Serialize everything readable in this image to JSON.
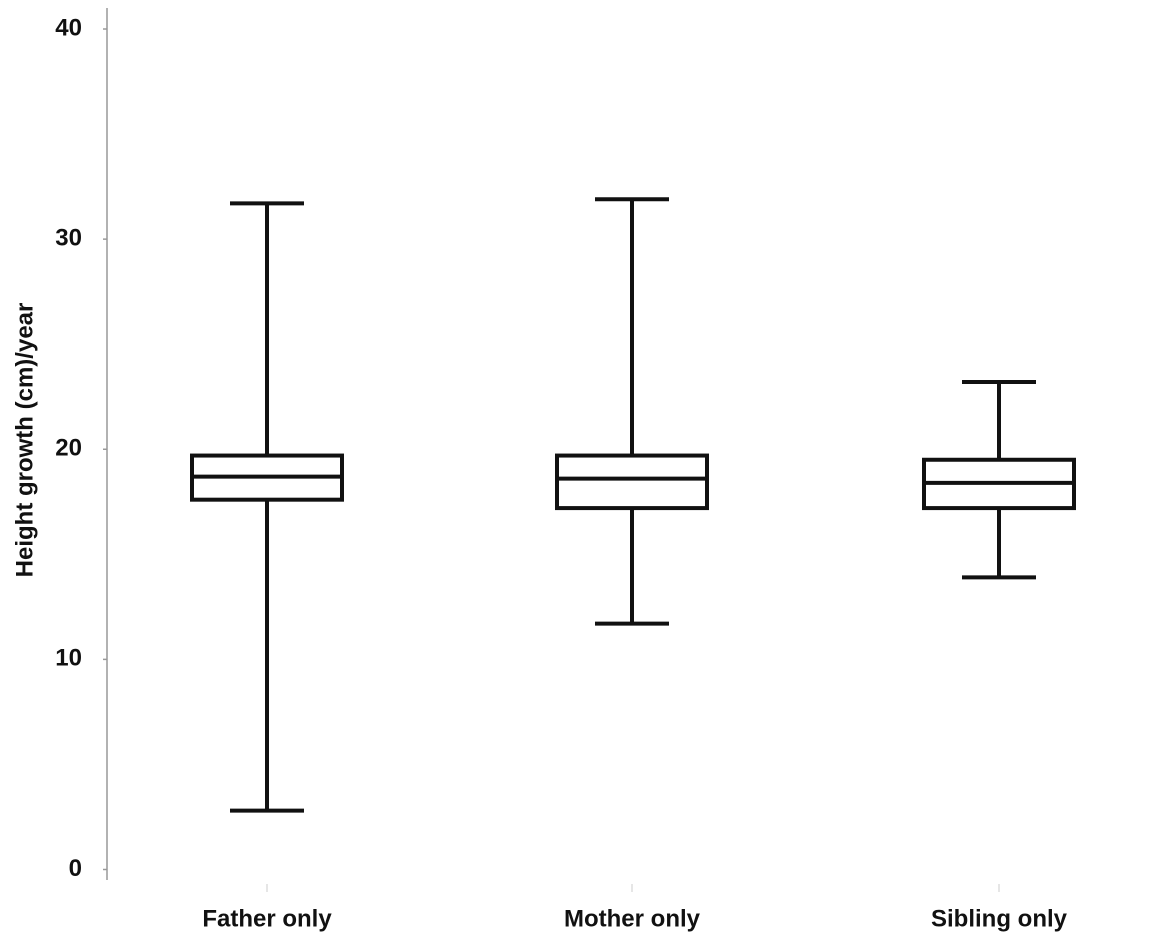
{
  "chart_data": {
    "type": "box",
    "y_label": "Height growth (cm)/year",
    "categories": [
      "Father only",
      "Mother only",
      "Sibling only"
    ],
    "min": [
      2.8,
      11.7,
      13.9
    ],
    "q1": [
      17.6,
      17.2,
      17.2
    ],
    "median": [
      18.7,
      18.6,
      18.4
    ],
    "q3": [
      19.7,
      19.7,
      19.5
    ],
    "max": [
      31.7,
      31.9,
      23.2
    ],
    "color": "#111111",
    "ylim": [
      -0.5,
      41
    ],
    "yticks": [
      0,
      10,
      20,
      30,
      40
    ]
  }
}
